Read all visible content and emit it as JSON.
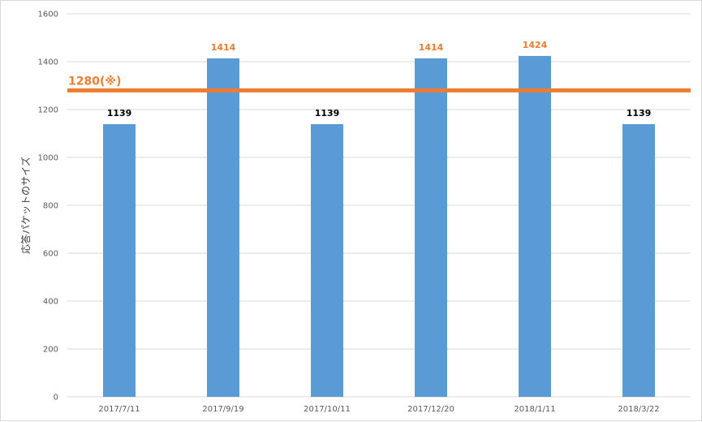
{
  "chart_data": {
    "type": "bar",
    "ylabel": "応答パケットのサイズ",
    "xlabel": "",
    "ylim": [
      0,
      1600
    ],
    "ytick_step": 200,
    "yticks": [
      "0",
      "200",
      "400",
      "600",
      "800",
      "1000",
      "1200",
      "1400",
      "1600"
    ],
    "grid": true,
    "categories": [
      "2017/7/11",
      "2017/9/19",
      "2017/10/11",
      "2017/12/20",
      "2018/1/11",
      "2018/3/22"
    ],
    "values": [
      1139,
      1414,
      1139,
      1414,
      1424,
      1139
    ],
    "data_labels": [
      "1139",
      "1414",
      "1139",
      "1414",
      "1424",
      "1139"
    ],
    "highlighted": [
      false,
      true,
      false,
      true,
      true,
      false
    ],
    "reference_line": {
      "value": 1280,
      "label": "1280(※)"
    }
  },
  "colors": {
    "bar": "#5b9bd5",
    "reference": "#ed7d31",
    "label_default": "#000000",
    "label_highlight": "#ed7d31",
    "grid": "#d9d9d9"
  }
}
